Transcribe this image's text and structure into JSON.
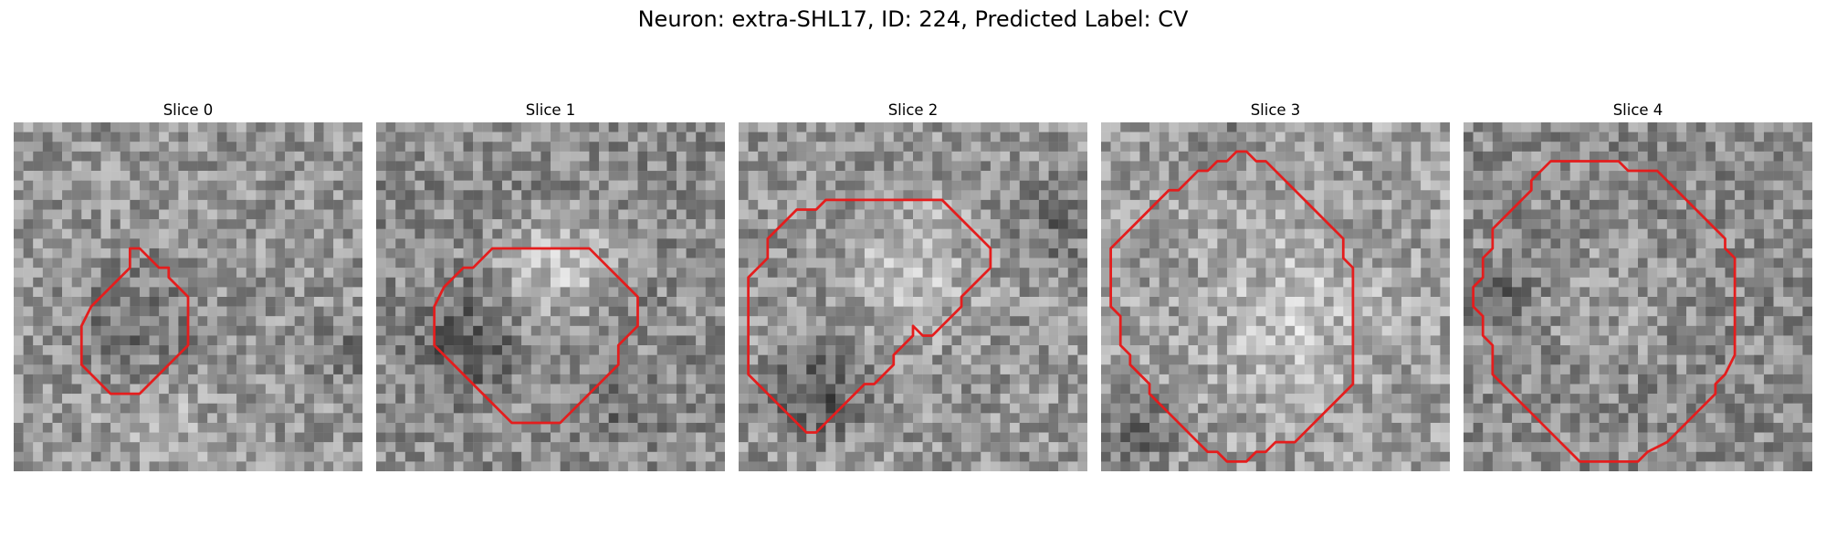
{
  "figure": {
    "title": "Neuron: extra-SHL17, ID: 224, Predicted Label: CV"
  },
  "panels": [
    {
      "title": "Slice 0",
      "contour": [
        [
          12,
          13
        ],
        [
          13,
          13
        ],
        [
          14,
          14
        ],
        [
          15,
          15
        ],
        [
          16,
          15
        ],
        [
          16,
          16
        ],
        [
          17,
          17
        ],
        [
          18,
          18
        ],
        [
          18,
          23
        ],
        [
          17,
          24
        ],
        [
          16,
          25
        ],
        [
          15,
          26
        ],
        [
          14,
          27
        ],
        [
          13,
          28
        ],
        [
          10,
          28
        ],
        [
          9,
          27
        ],
        [
          8,
          26
        ],
        [
          7,
          25
        ],
        [
          7,
          21
        ],
        [
          8,
          19
        ],
        [
          9,
          18
        ],
        [
          10,
          17
        ],
        [
          11,
          16
        ],
        [
          12,
          15
        ]
      ]
    },
    {
      "title": "Slice 1",
      "contour": [
        [
          15,
          13
        ],
        [
          17,
          13
        ],
        [
          22,
          13
        ],
        [
          23,
          14
        ],
        [
          24,
          15
        ],
        [
          25,
          16
        ],
        [
          26,
          17
        ],
        [
          27,
          18
        ],
        [
          27,
          21
        ],
        [
          26,
          22
        ],
        [
          25,
          23
        ],
        [
          25,
          25
        ],
        [
          24,
          26
        ],
        [
          23,
          27
        ],
        [
          22,
          28
        ],
        [
          21,
          29
        ],
        [
          20,
          30
        ],
        [
          19,
          31
        ],
        [
          14,
          31
        ],
        [
          13,
          30
        ],
        [
          12,
          29
        ],
        [
          11,
          28
        ],
        [
          10,
          27
        ],
        [
          9,
          26
        ],
        [
          8,
          25
        ],
        [
          7,
          24
        ],
        [
          6,
          23
        ],
        [
          6,
          19
        ],
        [
          7,
          17
        ],
        [
          8,
          16
        ],
        [
          9,
          15
        ],
        [
          10,
          15
        ],
        [
          11,
          14
        ],
        [
          12,
          13
        ]
      ]
    },
    {
      "title": "Slice 2",
      "contour": [
        [
          11,
          8
        ],
        [
          21,
          8
        ],
        [
          22,
          9
        ],
        [
          23,
          10
        ],
        [
          24,
          11
        ],
        [
          25,
          12
        ],
        [
          26,
          13
        ],
        [
          26,
          15
        ],
        [
          25,
          16
        ],
        [
          24,
          17
        ],
        [
          23,
          18
        ],
        [
          23,
          19
        ],
        [
          22,
          20
        ],
        [
          21,
          21
        ],
        [
          20,
          22
        ],
        [
          19,
          22
        ],
        [
          18,
          21
        ],
        [
          18,
          22
        ],
        [
          17,
          23
        ],
        [
          16,
          24
        ],
        [
          16,
          25
        ],
        [
          15,
          26
        ],
        [
          14,
          27
        ],
        [
          13,
          27
        ],
        [
          12,
          28
        ],
        [
          11,
          29
        ],
        [
          10,
          30
        ],
        [
          9,
          31
        ],
        [
          8,
          32
        ],
        [
          7,
          32
        ],
        [
          6,
          31
        ],
        [
          5,
          30
        ],
        [
          4,
          29
        ],
        [
          3,
          28
        ],
        [
          2,
          27
        ],
        [
          1,
          26
        ],
        [
          1,
          16
        ],
        [
          2,
          15
        ],
        [
          3,
          14
        ],
        [
          3,
          12
        ],
        [
          4,
          11
        ],
        [
          5,
          10
        ],
        [
          6,
          9
        ],
        [
          8,
          9
        ],
        [
          9,
          8
        ]
      ]
    },
    {
      "title": "Slice 3",
      "contour": [
        [
          13,
          4
        ],
        [
          14,
          3
        ],
        [
          15,
          3
        ],
        [
          16,
          4
        ],
        [
          17,
          4
        ],
        [
          18,
          5
        ],
        [
          19,
          6
        ],
        [
          20,
          7
        ],
        [
          21,
          8
        ],
        [
          22,
          9
        ],
        [
          23,
          10
        ],
        [
          24,
          11
        ],
        [
          25,
          12
        ],
        [
          25,
          14
        ],
        [
          26,
          15
        ],
        [
          26,
          27
        ],
        [
          25,
          28
        ],
        [
          24,
          29
        ],
        [
          23,
          30
        ],
        [
          22,
          31
        ],
        [
          21,
          32
        ],
        [
          20,
          33
        ],
        [
          18,
          33
        ],
        [
          17,
          34
        ],
        [
          16,
          34
        ],
        [
          15,
          35
        ],
        [
          13,
          35
        ],
        [
          12,
          34
        ],
        [
          11,
          34
        ],
        [
          10,
          33
        ],
        [
          9,
          32
        ],
        [
          8,
          31
        ],
        [
          7,
          30
        ],
        [
          6,
          29
        ],
        [
          5,
          28
        ],
        [
          5,
          27
        ],
        [
          4,
          26
        ],
        [
          3,
          25
        ],
        [
          3,
          24
        ],
        [
          2,
          23
        ],
        [
          2,
          20
        ],
        [
          1,
          19
        ],
        [
          1,
          13
        ],
        [
          2,
          12
        ],
        [
          3,
          11
        ],
        [
          4,
          10
        ],
        [
          5,
          9
        ],
        [
          6,
          8
        ],
        [
          7,
          7
        ],
        [
          8,
          7
        ],
        [
          9,
          6
        ],
        [
          10,
          5
        ],
        [
          11,
          5
        ],
        [
          12,
          4
        ]
      ]
    },
    {
      "title": "Slice 4",
      "contour": [
        [
          9,
          4
        ],
        [
          16,
          4
        ],
        [
          17,
          5
        ],
        [
          20,
          5
        ],
        [
          21,
          6
        ],
        [
          22,
          7
        ],
        [
          23,
          8
        ],
        [
          24,
          9
        ],
        [
          25,
          10
        ],
        [
          26,
          11
        ],
        [
          27,
          12
        ],
        [
          27,
          13
        ],
        [
          28,
          14
        ],
        [
          28,
          24
        ],
        [
          27,
          26
        ],
        [
          26,
          27
        ],
        [
          26,
          28
        ],
        [
          25,
          29
        ],
        [
          24,
          30
        ],
        [
          23,
          31
        ],
        [
          22,
          32
        ],
        [
          21,
          33
        ],
        [
          19,
          34
        ],
        [
          18,
          35
        ],
        [
          12,
          35
        ],
        [
          11,
          34
        ],
        [
          10,
          33
        ],
        [
          9,
          32
        ],
        [
          8,
          31
        ],
        [
          7,
          30
        ],
        [
          6,
          29
        ],
        [
          5,
          28
        ],
        [
          4,
          27
        ],
        [
          3,
          26
        ],
        [
          3,
          23
        ],
        [
          2,
          22
        ],
        [
          2,
          20
        ],
        [
          1,
          19
        ],
        [
          1,
          17
        ],
        [
          2,
          16
        ],
        [
          2,
          14
        ],
        [
          3,
          13
        ],
        [
          3,
          11
        ],
        [
          4,
          10
        ],
        [
          5,
          9
        ],
        [
          6,
          8
        ],
        [
          7,
          7
        ],
        [
          7,
          6
        ],
        [
          8,
          5
        ]
      ]
    }
  ],
  "colors": {
    "contour": "#e41d1d",
    "background": "#ffffff"
  },
  "icons": [
    "grayscale-microscopy-patch",
    "red-segmentation-contour"
  ]
}
